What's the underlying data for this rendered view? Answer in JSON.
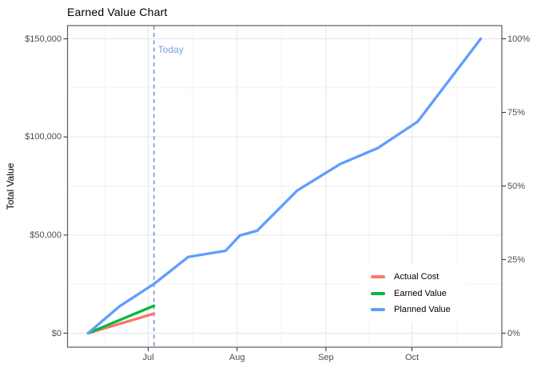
{
  "chart_data": {
    "type": "line",
    "title": "Earned Value Chart",
    "y_axis_label": "Total Value",
    "axes": {
      "ylim": [
        0,
        150000
      ],
      "y_left": [
        {
          "label": "$0",
          "value": 0
        },
        {
          "label": "$50,000",
          "value": 50000
        },
        {
          "label": "$100,000",
          "value": 100000
        },
        {
          "label": "$150,000",
          "value": 150000
        }
      ],
      "y_right": [
        {
          "label": "0%",
          "value": 0
        },
        {
          "label": "25%",
          "value": 37500
        },
        {
          "label": "50%",
          "value": 75000
        },
        {
          "label": "75%",
          "value": 112500
        },
        {
          "label": "100%",
          "value": 150000
        }
      ],
      "x_ticks": [
        {
          "label": "Jul",
          "day": 31
        },
        {
          "label": "Aug",
          "day": 62
        },
        {
          "label": "Sep",
          "day": 93
        },
        {
          "label": "Oct",
          "day": 123
        }
      ],
      "x_minor_days": [
        16,
        46.5,
        77.5,
        108,
        138.5
      ],
      "y_minor_values": [
        25000,
        75000,
        125000
      ]
    },
    "today": {
      "label": "Today",
      "date": "Jul 3",
      "day": 33,
      "color": "#7AA0E2"
    },
    "series": [
      {
        "name": "Actual Cost",
        "color": "#F8766D",
        "points": [
          {
            "date": "Jun 10",
            "day": 10,
            "value": 0
          },
          {
            "date": "Jul 3",
            "day": 33,
            "value": 10000
          }
        ]
      },
      {
        "name": "Earned Value",
        "color": "#00BA38",
        "points": [
          {
            "date": "Jun 10",
            "day": 10,
            "value": 0
          },
          {
            "date": "Jul 3",
            "day": 33,
            "value": 14000
          }
        ]
      },
      {
        "name": "Planned Value",
        "color": "#619CFF",
        "points": [
          {
            "date": "Jun 10",
            "day": 10,
            "value": 0
          },
          {
            "date": "Jun 21",
            "day": 21,
            "value": 13700
          },
          {
            "date": "Jul 3",
            "day": 33,
            "value": 25100
          },
          {
            "date": "Jul 15",
            "day": 45,
            "value": 38900
          },
          {
            "date": "Jul 28",
            "day": 58,
            "value": 42000
          },
          {
            "date": "Aug 2",
            "day": 63,
            "value": 49800
          },
          {
            "date": "Aug 8",
            "day": 69,
            "value": 52200
          },
          {
            "date": "Aug 22",
            "day": 83,
            "value": 72700
          },
          {
            "date": "Sep 6",
            "day": 98,
            "value": 86200
          },
          {
            "date": "Sep 19",
            "day": 111,
            "value": 94300
          },
          {
            "date": "Oct 3",
            "day": 125,
            "value": 107800
          },
          {
            "date": "Oct 25",
            "day": 147,
            "value": 150000
          }
        ]
      }
    ],
    "style": {
      "grid_major": "#E6E6E6",
      "grid_minor": "#F2F2F2",
      "panel_border": "#5C5C5C",
      "tick_color": "#333333",
      "axis_text_color": "#4D4D4D"
    },
    "legend_position": "inside bottom-right"
  }
}
